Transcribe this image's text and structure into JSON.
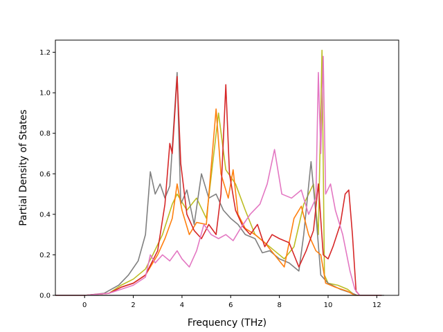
{
  "chart_data": {
    "type": "line",
    "title": "",
    "xlabel": "Frequency (THz)",
    "ylabel": "Partial Density of States",
    "xlim": [
      -1.2,
      12.9
    ],
    "ylim": [
      0,
      1.26
    ],
    "xticks": [
      0,
      2,
      4,
      6,
      8,
      10,
      12
    ],
    "xtick_labels": [
      "0",
      "2",
      "4",
      "6",
      "8",
      "10",
      "12"
    ],
    "yticks": [
      0.0,
      0.2,
      0.4,
      0.6,
      0.8,
      1.0,
      1.2
    ],
    "ytick_labels": [
      "0.0",
      "0.2",
      "0.4",
      "0.6",
      "0.8",
      "1.0",
      "1.2"
    ],
    "grid": false,
    "legend": "none",
    "series": [
      {
        "color": "#bcbd22",
        "points": [
          [
            -1.2,
            0
          ],
          [
            0,
            0
          ],
          [
            1,
            0.01
          ],
          [
            1.5,
            0.05
          ],
          [
            2,
            0.08
          ],
          [
            2.5,
            0.13
          ],
          [
            2.8,
            0.2
          ],
          [
            3.2,
            0.3
          ],
          [
            3.6,
            0.45
          ],
          [
            3.8,
            0.5
          ],
          [
            4.2,
            0.42
          ],
          [
            4.6,
            0.48
          ],
          [
            5.0,
            0.38
          ],
          [
            5.5,
            0.9
          ],
          [
            5.8,
            0.62
          ],
          [
            6.2,
            0.55
          ],
          [
            6.6,
            0.42
          ],
          [
            7.0,
            0.3
          ],
          [
            7.4,
            0.26
          ],
          [
            7.8,
            0.22
          ],
          [
            8.2,
            0.18
          ],
          [
            8.6,
            0.24
          ],
          [
            9.0,
            0.45
          ],
          [
            9.4,
            0.55
          ],
          [
            9.6,
            0.3
          ],
          [
            9.75,
            1.21
          ],
          [
            9.85,
            0.1
          ],
          [
            10.0,
            0.06
          ],
          [
            10.4,
            0.05
          ],
          [
            10.8,
            0.03
          ],
          [
            11.1,
            0
          ],
          [
            12.2,
            0
          ]
        ]
      },
      {
        "color": "#7f7f7f",
        "points": [
          [
            -1.2,
            0
          ],
          [
            0,
            0
          ],
          [
            0.8,
            0.01
          ],
          [
            1.4,
            0.05
          ],
          [
            1.8,
            0.1
          ],
          [
            2.2,
            0.17
          ],
          [
            2.5,
            0.3
          ],
          [
            2.7,
            0.61
          ],
          [
            2.9,
            0.5
          ],
          [
            3.1,
            0.55
          ],
          [
            3.3,
            0.48
          ],
          [
            3.5,
            0.54
          ],
          [
            3.8,
            1.1
          ],
          [
            3.95,
            0.45
          ],
          [
            4.2,
            0.52
          ],
          [
            4.5,
            0.35
          ],
          [
            4.8,
            0.6
          ],
          [
            5.1,
            0.48
          ],
          [
            5.4,
            0.5
          ],
          [
            5.7,
            0.42
          ],
          [
            6.0,
            0.38
          ],
          [
            6.3,
            0.35
          ],
          [
            6.6,
            0.3
          ],
          [
            7.0,
            0.28
          ],
          [
            7.3,
            0.21
          ],
          [
            7.6,
            0.22
          ],
          [
            8.0,
            0.18
          ],
          [
            8.4,
            0.16
          ],
          [
            8.8,
            0.12
          ],
          [
            9.0,
            0.3
          ],
          [
            9.3,
            0.66
          ],
          [
            9.5,
            0.4
          ],
          [
            9.7,
            0.1
          ],
          [
            10.0,
            0.06
          ],
          [
            10.5,
            0.03
          ],
          [
            11.0,
            0.01
          ],
          [
            11.2,
            0
          ],
          [
            12.2,
            0
          ]
        ]
      },
      {
        "color": "#ff7f0e",
        "points": [
          [
            -1.2,
            0
          ],
          [
            0,
            0
          ],
          [
            1,
            0.01
          ],
          [
            1.5,
            0.04
          ],
          [
            2,
            0.06
          ],
          [
            2.5,
            0.1
          ],
          [
            3,
            0.2
          ],
          [
            3.3,
            0.28
          ],
          [
            3.6,
            0.38
          ],
          [
            3.8,
            0.55
          ],
          [
            4.0,
            0.42
          ],
          [
            4.3,
            0.3
          ],
          [
            4.6,
            0.36
          ],
          [
            5.0,
            0.35
          ],
          [
            5.4,
            0.92
          ],
          [
            5.6,
            0.6
          ],
          [
            5.9,
            0.48
          ],
          [
            6.1,
            0.62
          ],
          [
            6.3,
            0.4
          ],
          [
            6.6,
            0.33
          ],
          [
            7.0,
            0.3
          ],
          [
            7.4,
            0.26
          ],
          [
            7.8,
            0.2
          ],
          [
            8.2,
            0.14
          ],
          [
            8.6,
            0.38
          ],
          [
            8.9,
            0.44
          ],
          [
            9.2,
            0.3
          ],
          [
            9.5,
            0.22
          ],
          [
            9.7,
            0.2
          ],
          [
            9.9,
            0.06
          ],
          [
            10.3,
            0.04
          ],
          [
            10.8,
            0.02
          ],
          [
            11.1,
            0
          ],
          [
            12.2,
            0
          ]
        ]
      },
      {
        "color": "#d62728",
        "points": [
          [
            -1.2,
            0
          ],
          [
            0,
            0
          ],
          [
            1,
            0.01
          ],
          [
            1.5,
            0.04
          ],
          [
            2,
            0.06
          ],
          [
            2.5,
            0.1
          ],
          [
            3,
            0.22
          ],
          [
            3.3,
            0.45
          ],
          [
            3.5,
            0.75
          ],
          [
            3.6,
            0.7
          ],
          [
            3.8,
            1.08
          ],
          [
            3.95,
            0.65
          ],
          [
            4.2,
            0.4
          ],
          [
            4.5,
            0.32
          ],
          [
            4.8,
            0.28
          ],
          [
            5.1,
            0.35
          ],
          [
            5.4,
            0.3
          ],
          [
            5.6,
            0.5
          ],
          [
            5.8,
            1.04
          ],
          [
            5.95,
            0.6
          ],
          [
            6.2,
            0.42
          ],
          [
            6.5,
            0.34
          ],
          [
            6.8,
            0.3
          ],
          [
            7.1,
            0.35
          ],
          [
            7.4,
            0.24
          ],
          [
            7.7,
            0.3
          ],
          [
            8.0,
            0.28
          ],
          [
            8.4,
            0.26
          ],
          [
            8.8,
            0.14
          ],
          [
            9.1,
            0.22
          ],
          [
            9.4,
            0.32
          ],
          [
            9.6,
            0.55
          ],
          [
            9.8,
            0.2
          ],
          [
            10.0,
            0.18
          ],
          [
            10.2,
            0.24
          ],
          [
            10.5,
            0.35
          ],
          [
            10.7,
            0.5
          ],
          [
            10.85,
            0.52
          ],
          [
            11.0,
            0.3
          ],
          [
            11.15,
            0.02
          ],
          [
            11.3,
            0
          ],
          [
            12.2,
            0
          ]
        ]
      },
      {
        "color": "#e377c2",
        "points": [
          [
            -1.2,
            0
          ],
          [
            0,
            0
          ],
          [
            1,
            0.01
          ],
          [
            1.5,
            0.03
          ],
          [
            2,
            0.05
          ],
          [
            2.5,
            0.09
          ],
          [
            2.7,
            0.2
          ],
          [
            2.9,
            0.16
          ],
          [
            3.2,
            0.2
          ],
          [
            3.5,
            0.17
          ],
          [
            3.8,
            0.22
          ],
          [
            4.0,
            0.18
          ],
          [
            4.3,
            0.14
          ],
          [
            4.6,
            0.22
          ],
          [
            4.9,
            0.35
          ],
          [
            5.2,
            0.3
          ],
          [
            5.5,
            0.28
          ],
          [
            5.8,
            0.3
          ],
          [
            6.1,
            0.27
          ],
          [
            6.4,
            0.33
          ],
          [
            6.8,
            0.4
          ],
          [
            7.2,
            0.45
          ],
          [
            7.5,
            0.55
          ],
          [
            7.8,
            0.72
          ],
          [
            8.1,
            0.5
          ],
          [
            8.5,
            0.48
          ],
          [
            8.9,
            0.52
          ],
          [
            9.2,
            0.4
          ],
          [
            9.5,
            0.48
          ],
          [
            9.6,
            1.1
          ],
          [
            9.7,
            0.7
          ],
          [
            9.8,
            1.18
          ],
          [
            9.9,
            0.5
          ],
          [
            10.1,
            0.55
          ],
          [
            10.3,
            0.42
          ],
          [
            10.6,
            0.3
          ],
          [
            10.9,
            0.12
          ],
          [
            11.1,
            0.03
          ],
          [
            11.3,
            0
          ],
          [
            12.2,
            0
          ]
        ]
      },
      {
        "color": "#8c8c8c",
        "points": [
          [
            -1.2,
            0
          ],
          [
            0,
            0
          ],
          [
            12.3,
            0
          ]
        ]
      }
    ]
  }
}
